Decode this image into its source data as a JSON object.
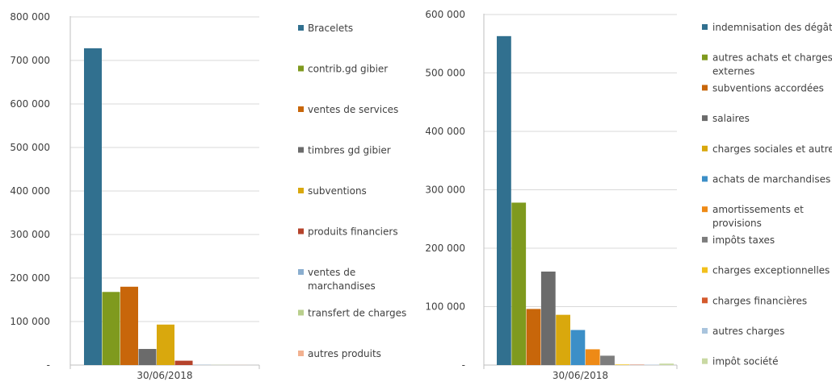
{
  "chart_data": [
    {
      "type": "bar",
      "categories": [
        "30/06/2018"
      ],
      "ylim": [
        0,
        800000
      ],
      "yticks": [
        0,
        100000,
        200000,
        300000,
        400000,
        500000,
        600000,
        700000,
        800000
      ],
      "ytick_labels": [
        "-",
        "100 000",
        "200 000",
        "300 000",
        "400 000",
        "500 000",
        "600 000",
        "700 000",
        "800 000"
      ],
      "grid": true,
      "legend": "right",
      "series": [
        {
          "name": "Bracelets",
          "values": [
            728000
          ],
          "color": "#31708f"
        },
        {
          "name": "contrib.gd gibier",
          "values": [
            168000
          ],
          "color": "#7f9a1e"
        },
        {
          "name": "ventes de services",
          "values": [
            180000
          ],
          "color": "#c8660a"
        },
        {
          "name": "timbres gd gibier",
          "values": [
            37000
          ],
          "color": "#6b6b6b"
        },
        {
          "name": "subventions",
          "values": [
            93000
          ],
          "color": "#d9a80d"
        },
        {
          "name": "produits financiers",
          "values": [
            10000
          ],
          "color": "#b5432b"
        },
        {
          "name": "ventes de marchandises",
          "values": [
            500
          ],
          "color": "#8aaecf"
        },
        {
          "name": "transfert de charges",
          "values": [
            300
          ],
          "color": "#b9cf8c"
        },
        {
          "name": "autres produits",
          "values": [
            200
          ],
          "color": "#f2b190"
        }
      ]
    },
    {
      "type": "bar",
      "categories": [
        "30/06/2018"
      ],
      "ylim": [
        0,
        600000
      ],
      "yticks": [
        0,
        100000,
        200000,
        300000,
        400000,
        500000,
        600000
      ],
      "ytick_labels": [
        "-",
        "100 000",
        "200 000",
        "300 000",
        "400 000",
        "500 000",
        "600 000"
      ],
      "grid": true,
      "legend": "right",
      "series": [
        {
          "name": "indemnisation des dégâts",
          "values": [
            563000
          ],
          "color": "#31708f"
        },
        {
          "name": "autres achats et charges externes",
          "values": [
            278000
          ],
          "color": "#7f9a1e"
        },
        {
          "name": "subventions accordées",
          "values": [
            96000
          ],
          "color": "#c8660a"
        },
        {
          "name": "salaires",
          "values": [
            160000
          ],
          "color": "#6b6b6b"
        },
        {
          "name": "charges sociales et autres",
          "values": [
            86000
          ],
          "color": "#d9a80d"
        },
        {
          "name": "achats de marchandises",
          "values": [
            60000
          ],
          "color": "#3c8fc7"
        },
        {
          "name": "amortissements et provisions",
          "values": [
            27000
          ],
          "color": "#ee8a16"
        },
        {
          "name": "impôts taxes",
          "values": [
            16000
          ],
          "color": "#7d7d7d"
        },
        {
          "name": "charges exceptionnelles",
          "values": [
            1000
          ],
          "color": "#f2c01c"
        },
        {
          "name": "charges financières",
          "values": [
            500
          ],
          "color": "#d45a2d"
        },
        {
          "name": "autres charges",
          "values": [
            500
          ],
          "color": "#a9c4dd"
        },
        {
          "name": "impôt société",
          "values": [
            2500
          ],
          "color": "#c9d9a3"
        }
      ]
    }
  ]
}
